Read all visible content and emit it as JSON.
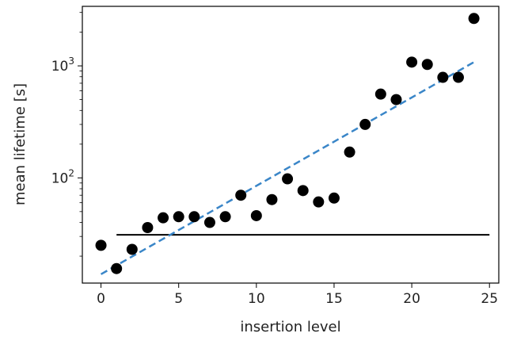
{
  "chart_data": {
    "type": "scatter",
    "title": "",
    "xlabel": "insertion level",
    "ylabel": "mean lifetime [s]",
    "xlim": [
      -1.2,
      25.6
    ],
    "ylim": [
      11.5,
      3400
    ],
    "yscale": "log",
    "grid": false,
    "x_ticks": [
      0,
      5,
      10,
      15,
      20,
      25
    ],
    "y_ticks": [
      {
        "value": 100,
        "base": "10",
        "exp": "2"
      },
      {
        "value": 1000,
        "base": "10",
        "exp": "3"
      }
    ],
    "series": [
      {
        "kind": "points",
        "color": "#000000",
        "x": [
          0,
          1,
          2,
          3,
          4,
          5,
          6,
          7,
          8,
          9,
          10,
          11,
          12,
          13,
          14,
          15,
          16,
          17,
          18,
          19,
          20,
          21,
          22,
          23,
          24
        ],
        "y": [
          25,
          15.5,
          23,
          36,
          44,
          45,
          45,
          40,
          45,
          70,
          46,
          64,
          98,
          77,
          61,
          66,
          170,
          300,
          560,
          500,
          1080,
          1030,
          790,
          790,
          2650
        ]
      },
      {
        "kind": "dashed-line",
        "color": "#3a86c8",
        "x": [
          0,
          24
        ],
        "y": [
          13.8,
          1080
        ]
      },
      {
        "kind": "solid-line",
        "color": "#000000",
        "x": [
          1,
          25
        ],
        "y": [
          31,
          31
        ]
      }
    ]
  }
}
